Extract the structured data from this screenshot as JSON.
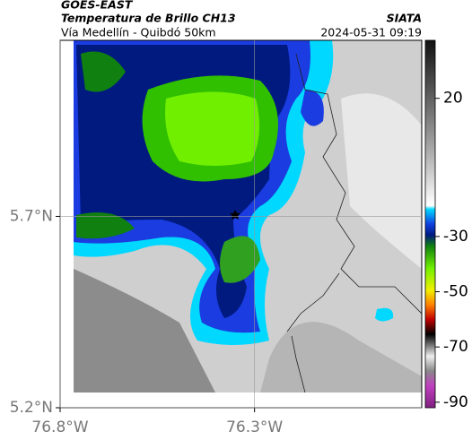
{
  "header": {
    "satellite": "GOES-EAST",
    "product": "Temperatura de Brillo CH13",
    "region": "Vía Medellín - Quibdó 50km",
    "source": "SIATA",
    "datetime": "2024-05-31 09:19"
  },
  "map": {
    "xlim": [
      -76.8,
      -75.87
    ],
    "ylim": [
      5.2,
      6.16
    ],
    "xticks": [
      {
        "value": -76.8,
        "label": "76.8°W"
      },
      {
        "value": -76.3,
        "label": "76.3°W"
      }
    ],
    "yticks": [
      {
        "value": 5.2,
        "label": "5.2°N"
      },
      {
        "value": 5.7,
        "label": "5.7°N"
      }
    ],
    "colorbar": {
      "lim": [
        -92,
        41
      ],
      "ticks": [
        20,
        -30,
        -50,
        -70,
        -90
      ]
    }
  }
}
